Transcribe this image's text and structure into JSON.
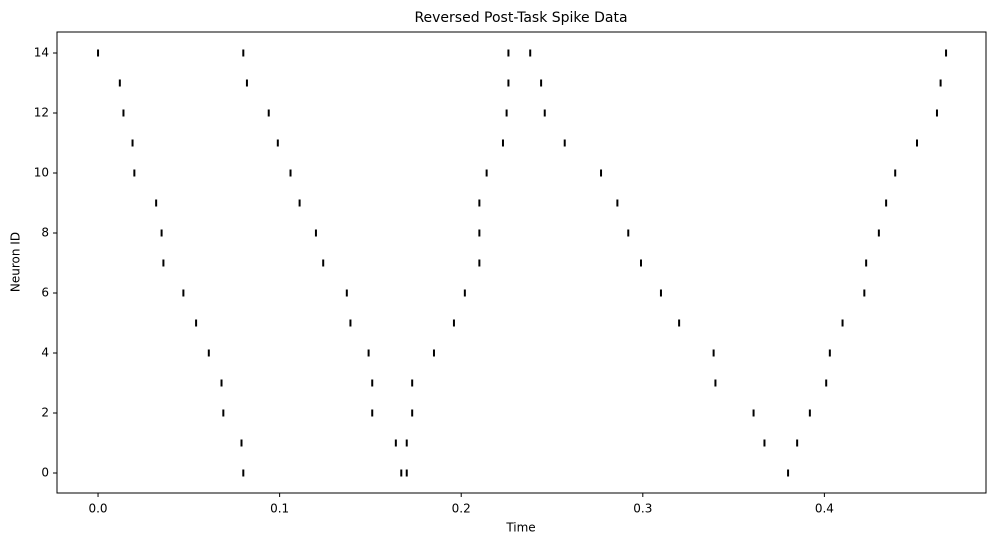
{
  "chart_data": {
    "type": "eventplot",
    "title": "Reversed Post-Task Spike Data",
    "xlabel": "Time",
    "ylabel": "Neuron ID",
    "color": "#000000",
    "lineoffsets": [
      0,
      1,
      2,
      3,
      4,
      5,
      6,
      7,
      8,
      9,
      10,
      11,
      12,
      13,
      14
    ],
    "positions": [
      [
        0.08,
        0.167,
        0.17,
        0.38
      ],
      [
        0.079,
        0.164,
        0.17,
        0.367,
        0.385
      ],
      [
        0.069,
        0.151,
        0.173,
        0.361,
        0.392
      ],
      [
        0.068,
        0.151,
        0.173,
        0.34,
        0.401
      ],
      [
        0.061,
        0.149,
        0.185,
        0.339,
        0.403
      ],
      [
        0.054,
        0.139,
        0.196,
        0.32,
        0.41
      ],
      [
        0.047,
        0.137,
        0.202,
        0.31,
        0.422
      ],
      [
        0.036,
        0.124,
        0.21,
        0.299,
        0.423
      ],
      [
        0.035,
        0.12,
        0.21,
        0.292,
        0.43
      ],
      [
        0.032,
        0.111,
        0.21,
        0.286,
        0.434
      ],
      [
        0.02,
        0.106,
        0.214,
        0.277,
        0.439
      ],
      [
        0.019,
        0.099,
        0.223,
        0.257,
        0.451
      ],
      [
        0.014,
        0.094,
        0.225,
        0.246,
        0.462
      ],
      [
        0.012,
        0.082,
        0.226,
        0.244,
        0.464
      ],
      [
        0.0,
        0.08,
        0.226,
        0.238,
        0.467
      ]
    ],
    "xlim": [
      -0.0226,
      0.489
    ],
    "ylim": [
      -0.667,
      14.7
    ],
    "xticks": [
      {
        "value": 0,
        "label": "0.0"
      },
      0.1,
      0.2,
      0.3,
      0.4
    ],
    "yticks": [
      0,
      2,
      4,
      6,
      8,
      10,
      12,
      14
    ]
  }
}
